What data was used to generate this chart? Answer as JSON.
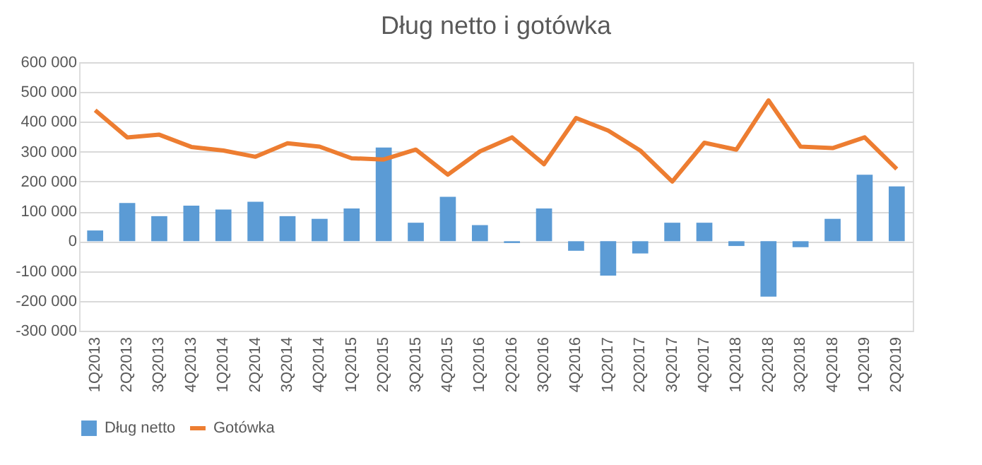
{
  "chart_data": {
    "type": "bar",
    "title": "Dług netto i gotówka",
    "categories": [
      "1Q2013",
      "2Q2013",
      "3Q2013",
      "4Q2013",
      "1Q2014",
      "2Q2014",
      "3Q2014",
      "4Q2014",
      "1Q2015",
      "2Q2015",
      "3Q2015",
      "4Q2015",
      "1Q2016",
      "2Q2016",
      "3Q2016",
      "4Q2016",
      "1Q2017",
      "2Q2017",
      "3Q2017",
      "4Q2017",
      "1Q2018",
      "2Q2018",
      "3Q2018",
      "4Q2018",
      "1Q2019",
      "2Q2019"
    ],
    "series": [
      {
        "name": "Dług netto",
        "color": "#5b9bd5",
        "values": [
          36000,
          128000,
          84000,
          119000,
          106000,
          132000,
          84000,
          75000,
          110000,
          314000,
          62000,
          149000,
          54000,
          -6000,
          110000,
          -32000,
          -115000,
          -41000,
          62000,
          62000,
          -16000,
          -186000,
          -20000,
          75000,
          223000,
          184000
        ]
      },
      {
        "name": "Gotówka",
        "type": "line",
        "color": "#ed7d31",
        "values": [
          439000,
          348000,
          357000,
          316000,
          304000,
          283000,
          328000,
          317000,
          278000,
          274000,
          307000,
          223000,
          301000,
          348000,
          258000,
          413000,
          371000,
          304000,
          200000,
          330000,
          307000,
          472000,
          317000,
          312000,
          348000,
          242000
        ]
      }
    ],
    "ylim": [
      -300000,
      600000
    ],
    "yticks": [
      {
        "value": -300000,
        "label": "-300 000"
      },
      {
        "value": -200000,
        "label": "-200 000"
      },
      {
        "value": -100000,
        "label": "-100 000"
      },
      {
        "value": 0,
        "label": "0"
      },
      {
        "value": 100000,
        "label": "100 000"
      },
      {
        "value": 200000,
        "label": "200 000"
      },
      {
        "value": 300000,
        "label": "300 000"
      },
      {
        "value": 400000,
        "label": "400 000"
      },
      {
        "value": 500000,
        "label": "500 000"
      },
      {
        "value": 600000,
        "label": "600 000"
      }
    ],
    "grid": "y",
    "legend": "bottom",
    "marker": "none",
    "line_style": "solid"
  }
}
